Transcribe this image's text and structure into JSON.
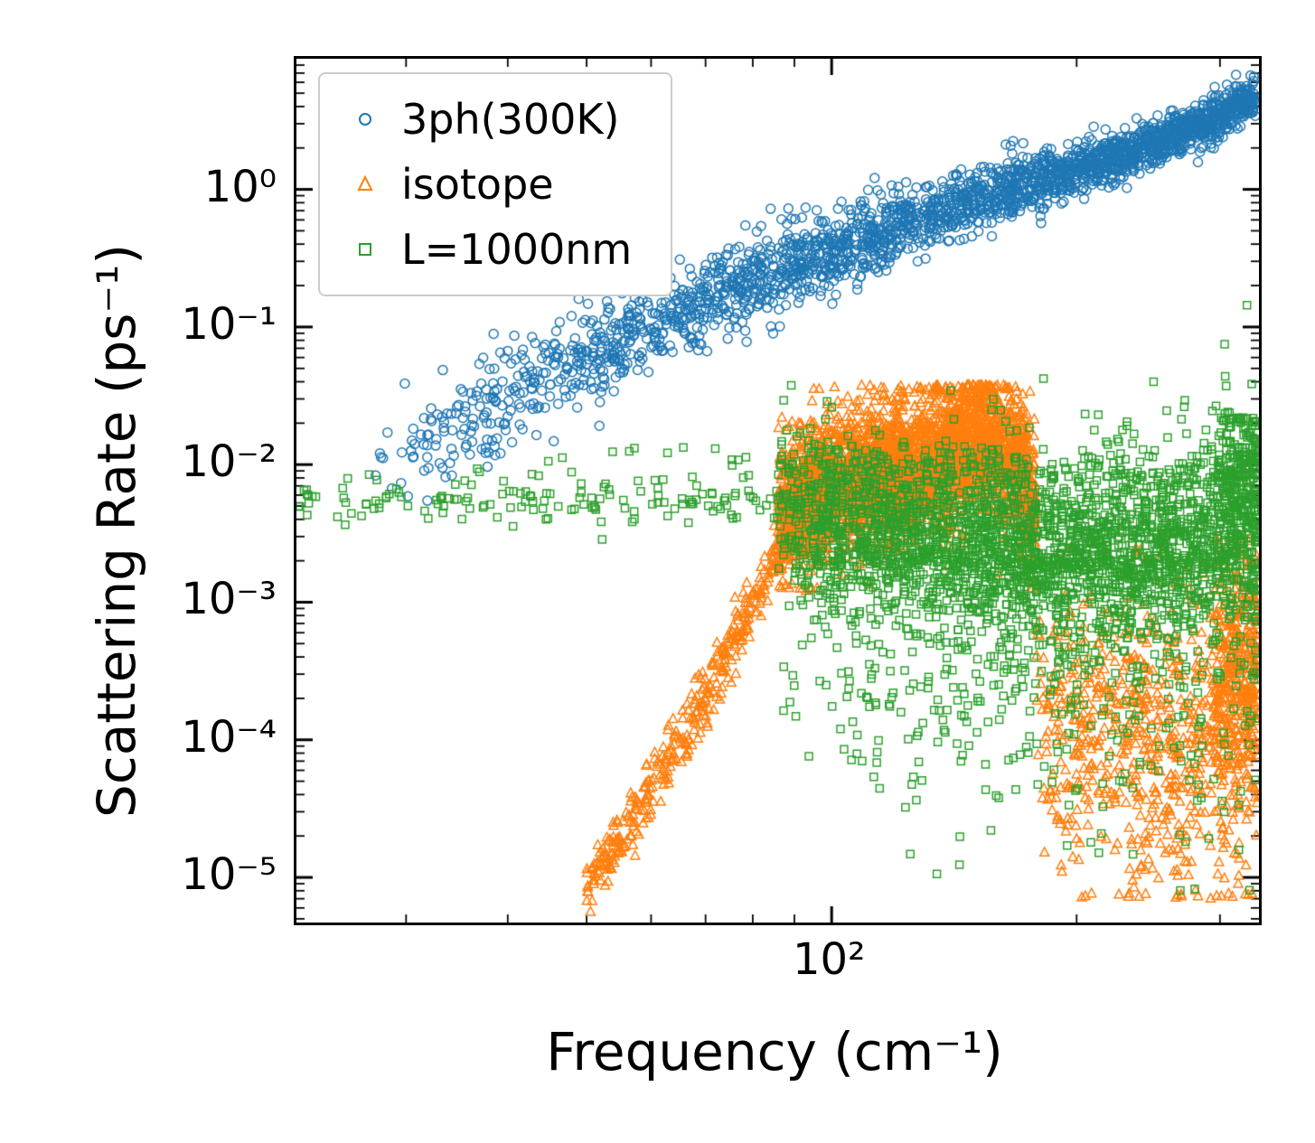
{
  "chart": {
    "xlabel": "Frequency (cm⁻¹)",
    "ylabel": "Scattering Rate (ps⁻¹)"
  },
  "chart_data": {
    "type": "scatter",
    "title": "",
    "xlabel": "Frequency (cm⁻¹)",
    "ylabel": "Scattering Rate (ps⁻¹)",
    "x_scale": "log",
    "y_scale": "log",
    "xlim": [
      22,
      335
    ],
    "ylim": [
      4.7e-06,
      8.9
    ],
    "grid": false,
    "background": "#ffffff",
    "x_ticks": [
      {
        "value": 100,
        "label": "10²"
      }
    ],
    "y_ticks": [
      {
        "value": 1,
        "label": "10⁰"
      },
      {
        "value": 0.1,
        "label": "10⁻¹"
      },
      {
        "value": 0.01,
        "label": "10⁻²"
      },
      {
        "value": 0.001,
        "label": "10⁻³"
      },
      {
        "value": 0.0001,
        "label": "10⁻⁴"
      },
      {
        "value": 1e-05,
        "label": "10⁻⁵"
      }
    ],
    "legend": {
      "position": "upper left",
      "entries": [
        "3ph(300K)",
        "isotope",
        "L=1000nm"
      ]
    },
    "series": [
      {
        "name": "3ph(300K)",
        "marker": "circle",
        "color": "#1f77b4",
        "clouds": [
          {
            "n": 2400,
            "x_range": [
              27,
              332
            ],
            "x_bias": 0.6,
            "trend": [
              [
                27,
                0.008
              ],
              [
                35,
                0.02
              ],
              [
                45,
                0.045
              ],
              [
                60,
                0.1
              ],
              [
                80,
                0.22
              ],
              [
                100,
                0.35
              ],
              [
                130,
                0.62
              ],
              [
                160,
                0.95
              ],
              [
                200,
                1.4
              ],
              [
                250,
                2.2
              ],
              [
                300,
                3.4
              ],
              [
                332,
                4.8
              ]
            ],
            "spread_dex": [
              0.22,
              0.07
            ]
          }
        ]
      },
      {
        "name": "isotope",
        "marker": "triangle",
        "color": "#ff7f0e",
        "clouds": [
          {
            "n": 420,
            "x_range": [
              50,
              96
            ],
            "x_bias": 1,
            "trend": [
              [
                50,
                9e-06
              ],
              [
                58,
                3e-05
              ],
              [
                66,
                0.00011
              ],
              [
                74,
                0.00038
              ],
              [
                82,
                0.0013
              ],
              [
                90,
                0.0045
              ],
              [
                96,
                0.009
              ]
            ],
            "spread_dex": [
              0.1,
              0.14
            ]
          },
          {
            "n": 3000,
            "x_range": [
              86,
              178
            ],
            "x_bias": 1,
            "trend": [
              [
                86,
                0.0045
              ],
              [
                100,
                0.007
              ],
              [
                120,
                0.009
              ],
              [
                140,
                0.012
              ],
              [
                152,
                0.017
              ],
              [
                160,
                0.014
              ],
              [
                170,
                0.009
              ],
              [
                178,
                0.005
              ]
            ],
            "spread_dex": [
              0.26,
              0.26
            ],
            "y_clip": [
              0.0012,
              0.038
            ]
          },
          {
            "n": 800,
            "x_range": [
              178,
              335
            ],
            "x_bias": 0.8,
            "trend": [
              [
                178,
                0.00015
              ],
              [
                220,
                0.00012
              ],
              [
                270,
                0.0001
              ],
              [
                335,
                0.0002
              ]
            ],
            "spread_dex": [
              0.55,
              0.6
            ],
            "y_clip": [
              7e-06,
              0.0025
            ]
          },
          {
            "n": 250,
            "x_range": [
              295,
              335
            ],
            "x_bias": 1,
            "trend": [
              [
                295,
                0.0003
              ],
              [
                335,
                0.0004
              ]
            ],
            "spread_dex": [
              0.5,
              0.5
            ],
            "y_clip": [
              7e-06,
              0.003
            ]
          }
        ]
      },
      {
        "name": "L=1000nm",
        "marker": "square",
        "color": "#2ca02c",
        "clouds": [
          {
            "n": 150,
            "x_range": [
              22,
              86
            ],
            "x_bias": 1,
            "trend": [
              [
                22,
                0.0055
              ],
              [
                86,
                0.0055
              ]
            ],
            "spread_dex": [
              0.09,
              0.09
            ]
          },
          {
            "n": 16,
            "x_range": [
              40,
              80
            ],
            "x_bias": 1,
            "trend": [
              [
                40,
                0.011
              ],
              [
                80,
                0.011
              ]
            ],
            "spread_dex": [
              0.08,
              0.08
            ]
          },
          {
            "n": 2600,
            "x_range": [
              86,
              335
            ],
            "x_bias": 0.85,
            "trend": [
              [
                86,
                0.005
              ],
              [
                100,
                0.004
              ],
              [
                130,
                0.003
              ],
              [
                180,
                0.0026
              ],
              [
                240,
                0.0026
              ],
              [
                300,
                0.0032
              ],
              [
                335,
                0.0045
              ]
            ],
            "spread_dex": [
              0.3,
              0.38
            ]
          },
          {
            "n": 550,
            "x_range": [
              86,
              335
            ],
            "x_bias": 0.8,
            "trend": [
              [
                86,
                0.0008
              ],
              [
                150,
                0.0004
              ],
              [
                240,
                0.0003
              ],
              [
                335,
                0.0004
              ]
            ],
            "spread_dex": [
              0.6,
              0.65
            ],
            "y_clip": [
              8e-06,
              0.002
            ]
          },
          {
            "n": 160,
            "x_range": [
              298,
              335
            ],
            "x_bias": 1,
            "trend": [
              [
                298,
                0.008
              ],
              [
                335,
                0.009
              ]
            ],
            "spread_dex": [
              0.28,
              0.3
            ],
            "y_clip": [
              0.001,
              0.022
            ]
          },
          {
            "n": 60,
            "x_range": [
              95,
              180
            ],
            "x_bias": 1,
            "trend": [
              [
                95,
                0.0105
              ],
              [
                180,
                0.0105
              ]
            ],
            "spread_dex": [
              0.07,
              0.07
            ]
          }
        ]
      }
    ]
  }
}
